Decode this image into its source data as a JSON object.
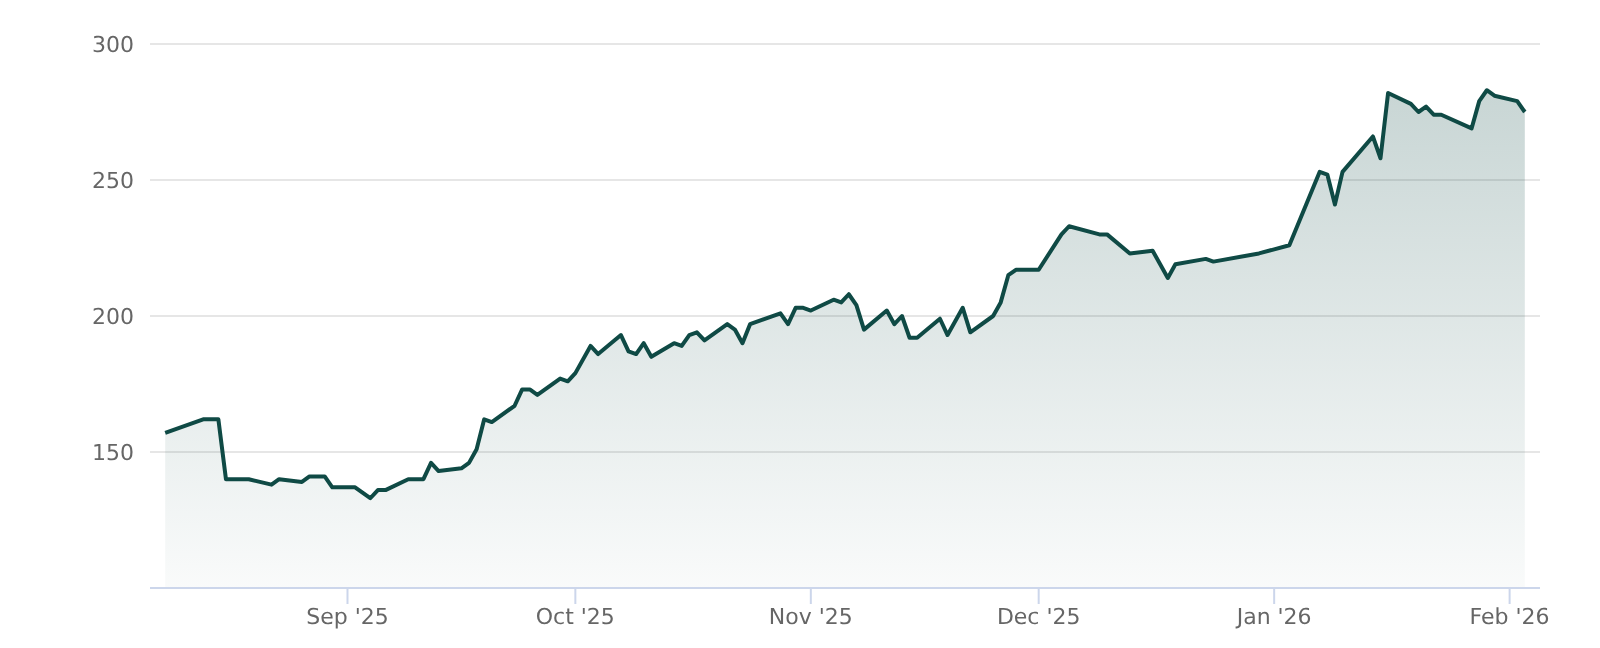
{
  "chart_data": {
    "type": "area",
    "x": [
      "2025-08-08",
      "2025-08-13",
      "2025-08-15",
      "2025-08-16",
      "2025-08-19",
      "2025-08-22",
      "2025-08-23",
      "2025-08-26",
      "2025-08-27",
      "2025-08-29",
      "2025-08-30",
      "2025-09-02",
      "2025-09-04",
      "2025-09-05",
      "2025-09-06",
      "2025-09-09",
      "2025-09-11",
      "2025-09-12",
      "2025-09-13",
      "2025-09-16",
      "2025-09-17",
      "2025-09-18",
      "2025-09-19",
      "2025-09-20",
      "2025-09-23",
      "2025-09-24",
      "2025-09-25",
      "2025-09-26",
      "2025-09-29",
      "2025-09-30",
      "2025-10-01",
      "2025-10-03",
      "2025-10-04",
      "2025-10-07",
      "2025-10-08",
      "2025-10-09",
      "2025-10-10",
      "2025-10-11",
      "2025-10-14",
      "2025-10-15",
      "2025-10-16",
      "2025-10-17",
      "2025-10-18",
      "2025-10-21",
      "2025-10-22",
      "2025-10-23",
      "2025-10-24",
      "2025-10-28",
      "2025-10-29",
      "2025-10-30",
      "2025-10-31",
      "2025-11-01",
      "2025-11-04",
      "2025-11-05",
      "2025-11-06",
      "2025-11-07",
      "2025-11-08",
      "2025-11-11",
      "2025-11-12",
      "2025-11-13",
      "2025-11-14",
      "2025-11-15",
      "2025-11-18",
      "2025-11-19",
      "2025-11-21",
      "2025-11-22",
      "2025-11-25",
      "2025-11-26",
      "2025-11-27",
      "2025-11-28",
      "2025-12-01",
      "2025-12-04",
      "2025-12-05",
      "2025-12-09",
      "2025-12-10",
      "2025-12-13",
      "2025-12-16",
      "2025-12-18",
      "2025-12-19",
      "2025-12-23",
      "2025-12-24",
      "2025-12-30",
      "2026-01-03",
      "2026-01-07",
      "2026-01-08",
      "2026-01-09",
      "2026-01-10",
      "2026-01-14",
      "2026-01-15",
      "2026-01-16",
      "2026-01-19",
      "2026-01-20",
      "2026-01-21",
      "2026-01-22",
      "2026-01-23",
      "2026-01-27",
      "2026-01-28",
      "2026-01-29",
      "2026-01-30",
      "2026-02-02",
      "2026-02-03"
    ],
    "series": [
      {
        "color": "#0f4a45",
        "values": [
          157,
          162,
          162,
          140,
          140,
          138,
          140,
          139,
          141,
          141,
          137,
          137,
          133,
          136,
          136,
          140,
          140,
          146,
          143,
          144,
          146,
          151,
          162,
          161,
          167,
          173,
          173,
          171,
          177,
          176,
          179,
          189,
          186,
          193,
          187,
          186,
          190,
          185,
          190,
          189,
          193,
          194,
          191,
          197,
          195,
          190,
          197,
          201,
          197,
          203,
          203,
          202,
          206,
          205,
          208,
          204,
          195,
          202,
          197,
          200,
          192,
          192,
          199,
          193,
          203,
          194,
          200,
          205,
          215,
          217,
          217,
          230,
          233,
          230,
          230,
          223,
          224,
          214,
          219,
          221,
          220,
          223,
          226,
          253,
          252,
          241,
          253,
          266,
          258,
          282,
          278,
          275,
          277,
          274,
          274,
          269,
          279,
          283,
          281,
          279,
          275
        ]
      }
    ],
    "xlim": [
      "2025-08-06",
      "2026-02-05"
    ],
    "xticks": [
      {
        "value": "2025-09-01",
        "label": "Sep '25"
      },
      {
        "value": "2025-10-01",
        "label": "Oct '25"
      },
      {
        "value": "2025-11-01",
        "label": "Nov '25"
      },
      {
        "value": "2025-12-01",
        "label": "Dec '25"
      },
      {
        "value": "2026-01-01",
        "label": "Jan '26"
      },
      {
        "value": "2026-02-01",
        "label": "Feb '26"
      }
    ],
    "ylim": [
      100,
      300
    ],
    "yticks": [
      150,
      200,
      250,
      300
    ],
    "grid": "y",
    "marker": "none",
    "line_style": "solid",
    "legend": false
  }
}
